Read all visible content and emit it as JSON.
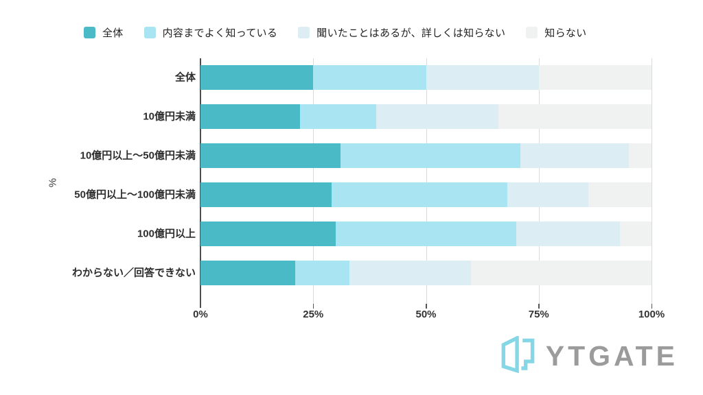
{
  "chart_data": {
    "type": "bar",
    "stacked": true,
    "orientation": "horizontal",
    "title": "",
    "ylabel": "%",
    "xlim": [
      0,
      100
    ],
    "grid": true,
    "legend_position": "top",
    "categories": [
      "全体",
      "10億円未満",
      "10億円以上〜50億円未満",
      "50億円以上〜100億円未満",
      "100億円以上",
      "わからない／回答できない"
    ],
    "x_ticks": [
      "0%",
      "25%",
      "50%",
      "75%",
      "100%"
    ],
    "series": [
      {
        "name": "全体",
        "color": "#4abbc6",
        "values": [
          25,
          22,
          31,
          29,
          30,
          21
        ]
      },
      {
        "name": "内容までよく知っている",
        "color": "#a9e4f2",
        "values": [
          25,
          17,
          40,
          39,
          40,
          12
        ]
      },
      {
        "name": "聞いたことはあるが、詳しくは知らない",
        "color": "#dcedf3",
        "values": [
          25,
          27,
          24,
          18,
          23,
          27
        ]
      },
      {
        "name": "知らない",
        "color": "#f0f1f1",
        "values": [
          25,
          34,
          5,
          14,
          7,
          40
        ]
      }
    ]
  },
  "colors": {
    "background": "#ffffff",
    "gridline": "#d8dbdd",
    "axis_line": "#4d4d4d",
    "tick_mark": "#555555",
    "tick_label": "#333333",
    "category_label": "#2d2d2d",
    "legend_label": "#222222"
  },
  "logo": {
    "text": "YTGATE",
    "icon": "gate-icon",
    "icon_color": "#85d7e6",
    "text_color": "#9b9b9b"
  }
}
